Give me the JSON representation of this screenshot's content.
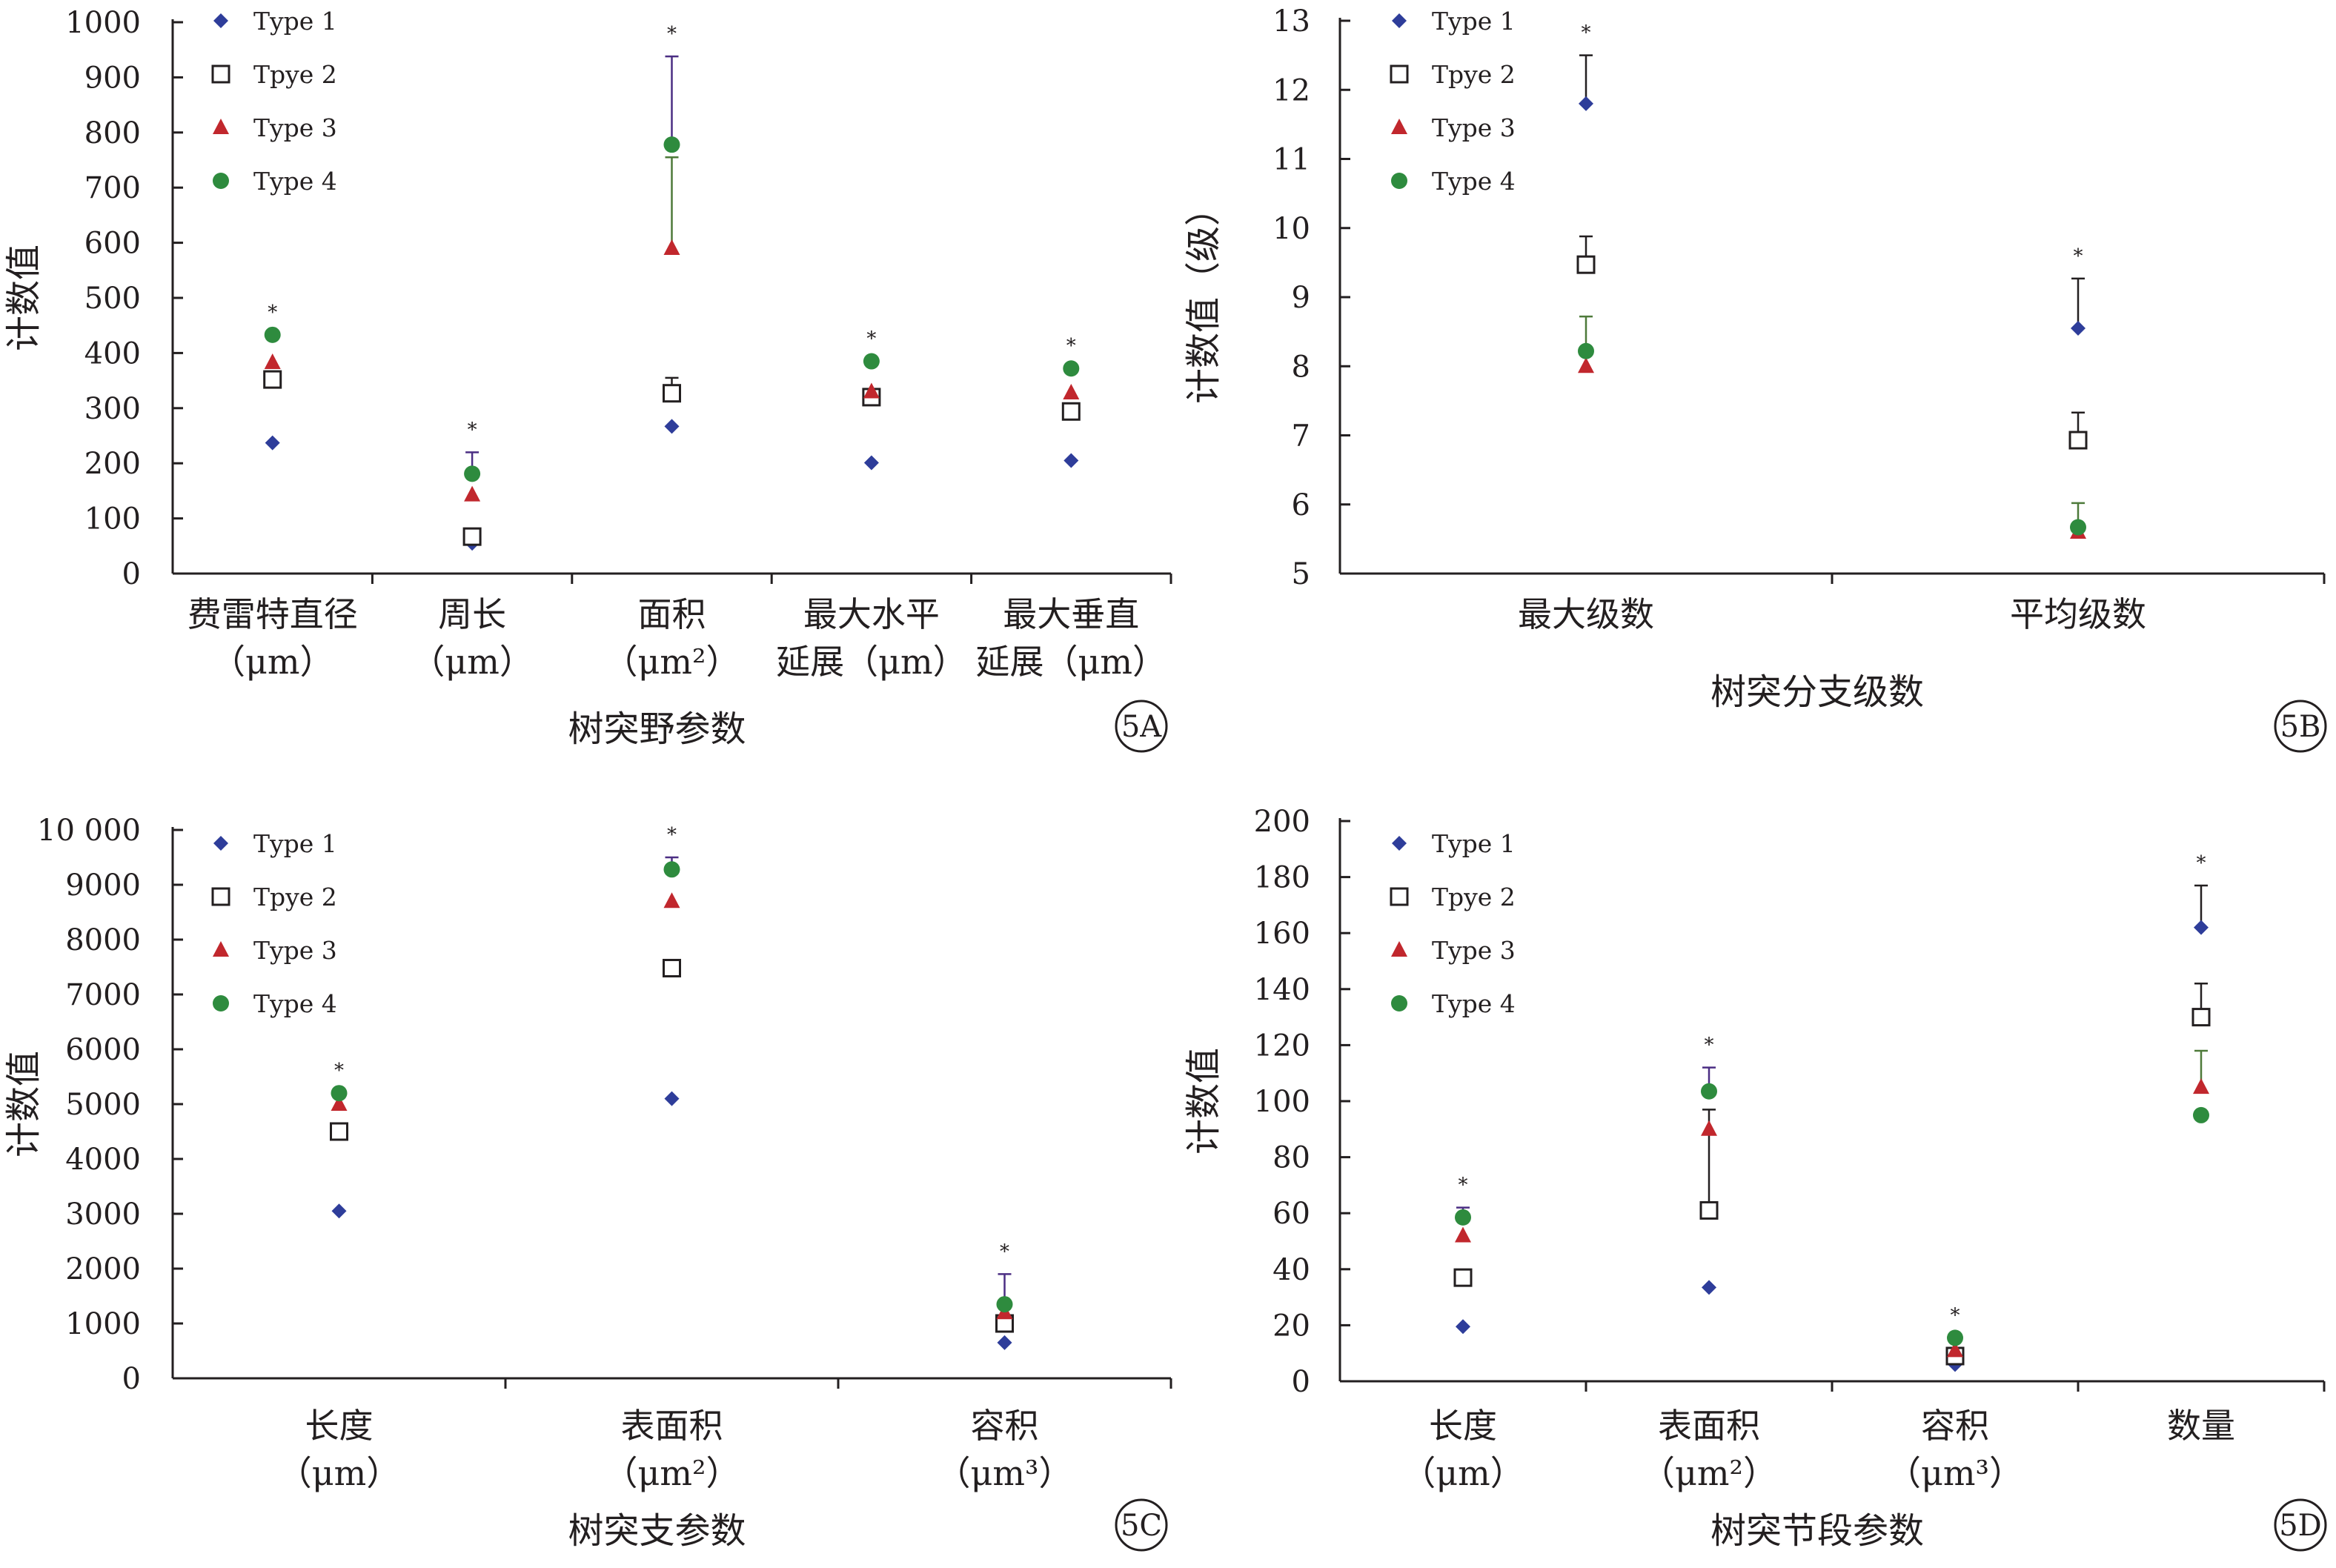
{
  "chart_data": [
    {
      "type": "scatter",
      "panel": "5A",
      "xlabel": "树突野参数",
      "ylabel": "计数值",
      "ylim": [
        0,
        1000
      ],
      "yticks": [
        "0",
        "100",
        "200",
        "300",
        "400",
        "500",
        "600",
        "700",
        "800",
        "900",
        "1000"
      ],
      "categories": [
        [
          "费雷特直径",
          "（μm）"
        ],
        [
          "周长",
          "（μm）"
        ],
        [
          "面积",
          "（μm²）"
        ],
        [
          "最大水平",
          "延展（μm）"
        ],
        [
          "最大垂直",
          "延展（μm）"
        ]
      ],
      "series": [
        {
          "name": "Type 1",
          "marker": "diamond",
          "color": "#2e3d9a",
          "values": [
            237,
            55,
            267,
            201,
            205
          ],
          "err": [
            null,
            null,
            null,
            null,
            null
          ]
        },
        {
          "name": "Tpye 2",
          "marker": "square",
          "color": "#231f20",
          "values": [
            352,
            67,
            327,
            320,
            294
          ],
          "err": [
            null,
            null,
            355,
            null,
            null
          ]
        },
        {
          "name": "Type 3",
          "marker": "triangle",
          "color": "#c1272d",
          "values": [
            383,
            143,
            590,
            330,
            328
          ],
          "err": [
            null,
            null,
            755,
            null,
            null
          ]
        },
        {
          "name": "Type 4",
          "marker": "circle",
          "color": "#2e8b3e",
          "values": [
            433,
            181,
            778,
            385,
            372
          ],
          "err": [
            null,
            220,
            938,
            null,
            null
          ]
        }
      ],
      "significance": [
        "*",
        "*",
        "*",
        "*",
        "*"
      ],
      "legend_position": "top-left"
    },
    {
      "type": "scatter",
      "panel": "5B",
      "xlabel": "树突分支级数",
      "ylabel": "计数值（级）",
      "ylim": [
        5,
        13
      ],
      "yticks": [
        "5",
        "6",
        "7",
        "8",
        "9",
        "10",
        "11",
        "12",
        "13"
      ],
      "categories": [
        [
          "最大级数"
        ],
        [
          "平均级数"
        ]
      ],
      "series": [
        {
          "name": "Type 1",
          "marker": "diamond",
          "color": "#2e3d9a",
          "values": [
            11.8,
            8.55
          ],
          "err": [
            12.5,
            9.27
          ]
        },
        {
          "name": "Tpye 2",
          "marker": "square",
          "color": "#231f20",
          "values": [
            9.47,
            6.93
          ],
          "err": [
            9.88,
            7.33
          ]
        },
        {
          "name": "Type 3",
          "marker": "triangle",
          "color": "#c1272d",
          "values": [
            8.0,
            5.6
          ],
          "err": [
            8.72,
            6.02
          ]
        },
        {
          "name": "Type 4",
          "marker": "circle",
          "color": "#2e8b3e",
          "values": [
            8.22,
            5.67
          ],
          "err": [
            null,
            null
          ]
        }
      ],
      "significance": [
        "*",
        "*"
      ],
      "legend_position": "top-left"
    },
    {
      "type": "scatter",
      "panel": "5C",
      "xlabel": "树突支参数",
      "ylabel": "计数值",
      "ylim": [
        0,
        10000
      ],
      "yticks": [
        "0",
        "1000",
        "2000",
        "3000",
        "4000",
        "5000",
        "6000",
        "7000",
        "8000",
        "9000",
        "10 000"
      ],
      "categories": [
        [
          "长度",
          "（μm）"
        ],
        [
          "表面积",
          "（μm²）"
        ],
        [
          "容积",
          "（μm³）"
        ]
      ],
      "series": [
        {
          "name": "Type 1",
          "marker": "diamond",
          "color": "#2e3d9a",
          "values": [
            3050,
            5100,
            650
          ],
          "err": [
            null,
            null,
            null
          ]
        },
        {
          "name": "Tpye 2",
          "marker": "square",
          "color": "#231f20",
          "values": [
            4500,
            7480,
            1000
          ],
          "err": [
            null,
            null,
            null
          ]
        },
        {
          "name": "Type 3",
          "marker": "triangle",
          "color": "#c1272d",
          "values": [
            5000,
            8700,
            1200
          ],
          "err": [
            null,
            null,
            null
          ]
        },
        {
          "name": "Type 4",
          "marker": "circle",
          "color": "#2e8b3e",
          "values": [
            5200,
            9280,
            1350
          ],
          "err": [
            null,
            9500,
            1900
          ]
        }
      ],
      "significance": [
        "*",
        "*",
        "*"
      ],
      "legend_position": "top-left"
    },
    {
      "type": "scatter",
      "panel": "5D",
      "xlabel": "树突节段参数",
      "ylabel": "计数值",
      "ylim": [
        0,
        200
      ],
      "yticks": [
        "0",
        "20",
        "40",
        "60",
        "80",
        "100",
        "120",
        "140",
        "160",
        "180",
        "200"
      ],
      "categories": [
        [
          "长度",
          "（μm）"
        ],
        [
          "表面积",
          "（μm²）"
        ],
        [
          "容积",
          "（μm³）"
        ],
        [
          "数量"
        ]
      ],
      "series": [
        {
          "name": "Type 1",
          "marker": "diamond",
          "color": "#2e3d9a",
          "values": [
            19.5,
            33.5,
            6,
            162
          ],
          "err": [
            null,
            null,
            null,
            177
          ]
        },
        {
          "name": "Tpye 2",
          "marker": "square",
          "color": "#231f20",
          "values": [
            37,
            61,
            9,
            130
          ],
          "err": [
            null,
            97,
            null,
            142
          ]
        },
        {
          "name": "Type 3",
          "marker": "triangle",
          "color": "#c1272d",
          "values": [
            52,
            90,
            11,
            105
          ],
          "err": [
            null,
            null,
            null,
            118
          ]
        },
        {
          "name": "Type 4",
          "marker": "circle",
          "color": "#2e8b3e",
          "values": [
            58.5,
            103.5,
            15.5,
            95
          ],
          "err": [
            62,
            112,
            null,
            null
          ]
        }
      ],
      "significance": [
        "*",
        "*",
        "*",
        "*"
      ],
      "legend_position": "top-left"
    }
  ]
}
